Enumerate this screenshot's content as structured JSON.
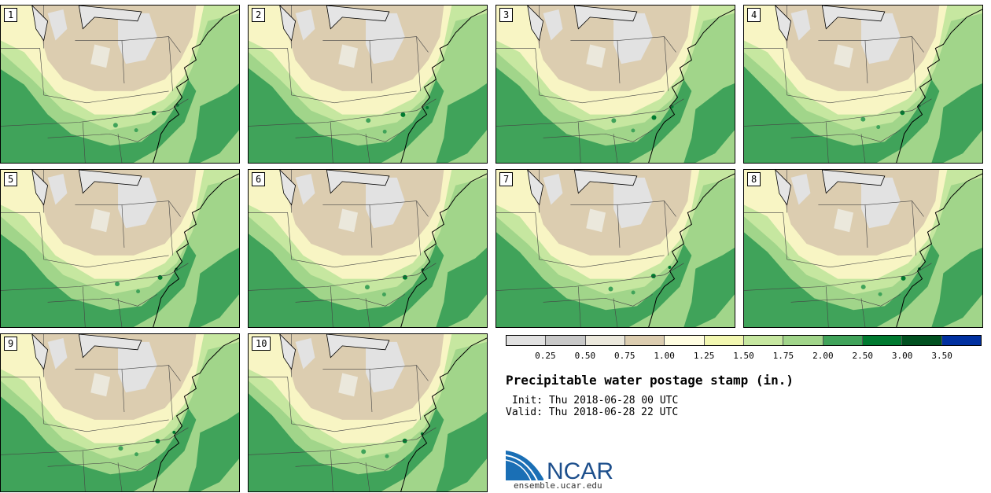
{
  "stamps": [
    {
      "label": "1"
    },
    {
      "label": "2"
    },
    {
      "label": "3"
    },
    {
      "label": "4"
    },
    {
      "label": "5"
    },
    {
      "label": "6"
    },
    {
      "label": "7"
    },
    {
      "label": "8"
    },
    {
      "label": "9"
    },
    {
      "label": "10"
    }
  ],
  "colorbar": {
    "ticks": [
      "0.25",
      "0.50",
      "0.75",
      "1.00",
      "1.25",
      "1.50",
      "1.75",
      "2.00",
      "2.50",
      "3.00",
      "3.50"
    ],
    "colors": [
      "#e1e1e1",
      "#c8c8c8",
      "#ebe8dc",
      "#dccdb0",
      "#fffde0",
      "#f2f7b0",
      "#c6e7a0",
      "#a1d58a",
      "#40a35a",
      "#007a30",
      "#005020",
      "#0030a0"
    ]
  },
  "title": "Precipitable water postage stamp (in.)",
  "init": "Init: Thu 2018-06-28 00 UTC",
  "valid": "Valid: Thu 2018-06-28 22 UTC",
  "logo": {
    "name": "NCAR",
    "url": "ensemble.ucar.edu"
  }
}
